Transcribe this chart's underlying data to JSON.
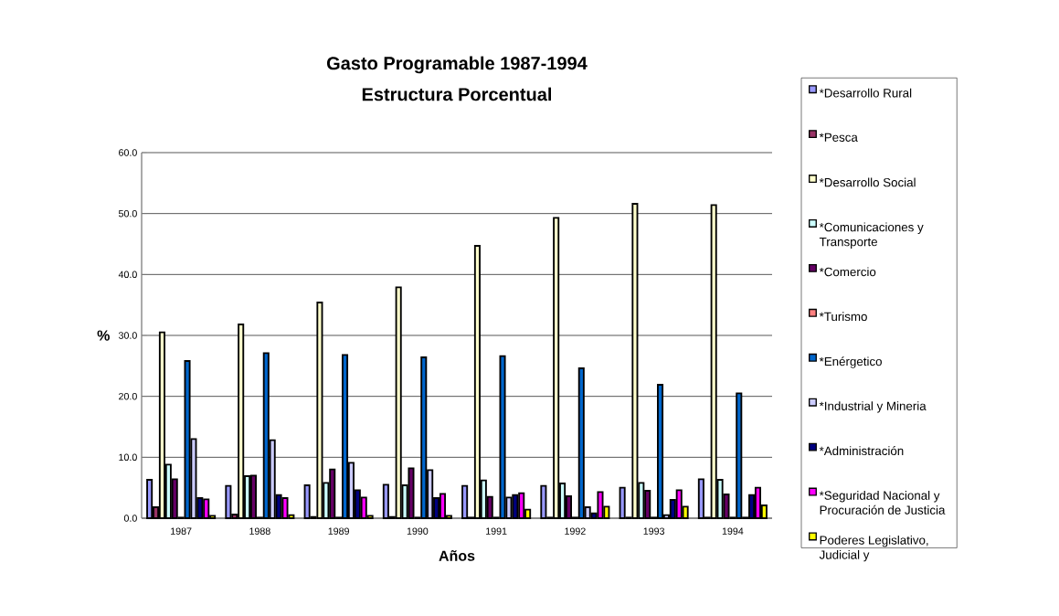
{
  "chart_data": {
    "type": "bar",
    "title": "Gasto Programable 1987-1994",
    "subtitle": "Estructura Porcentual",
    "xlabel": "Años",
    "ylabel": "%",
    "categories": [
      "1987",
      "1988",
      "1989",
      "1990",
      "1991",
      "1992",
      "1993",
      "1994"
    ],
    "series": [
      {
        "name": "*Desarrollo Rural",
        "color": "#9999ff",
        "values": [
          6.3,
          5.3,
          5.4,
          5.5,
          5.3,
          5.3,
          5.0,
          6.4
        ]
      },
      {
        "name": "*Pesca",
        "color": "#993366",
        "values": [
          1.8,
          0.6,
          0.2,
          0.2,
          0.1,
          0.1,
          0.1,
          0.1
        ]
      },
      {
        "name": "*Desarrollo Social",
        "color": "#ffffcc",
        "values": [
          30.5,
          31.8,
          35.4,
          37.9,
          44.7,
          49.3,
          51.6,
          51.4
        ]
      },
      {
        "name": "*Comunicaciones y Transporte",
        "color": "#ccffff",
        "values": [
          8.8,
          6.9,
          5.8,
          5.4,
          6.2,
          5.7,
          5.8,
          6.3
        ]
      },
      {
        "name": "*Comercio",
        "color": "#660066",
        "values": [
          6.4,
          7.0,
          8.0,
          8.2,
          3.5,
          3.6,
          4.5,
          3.9
        ]
      },
      {
        "name": "*Turismo",
        "color": "#ff8080",
        "values": [
          0.1,
          0.1,
          0.1,
          0.1,
          0.1,
          0.1,
          0.1,
          0.1
        ]
      },
      {
        "name": "*Enérgetico",
        "color": "#0066cc",
        "values": [
          25.8,
          27.1,
          26.8,
          26.4,
          26.6,
          24.6,
          21.9,
          20.5
        ]
      },
      {
        "name": "*Industrial y Mineria",
        "color": "#ccccff",
        "values": [
          13.0,
          12.8,
          9.1,
          7.9,
          3.4,
          1.8,
          0.5,
          0.1
        ]
      },
      {
        "name": "*Administración",
        "color": "#000080",
        "values": [
          3.3,
          3.8,
          4.6,
          3.3,
          3.8,
          0.8,
          3.0,
          3.8
        ]
      },
      {
        "name": "*Seguridad Nacional y Procuración de Justicia",
        "color": "#ff00ff",
        "values": [
          3.1,
          3.3,
          3.4,
          4.0,
          4.1,
          4.3,
          4.6,
          5.0
        ]
      },
      {
        "name": "Poderes Legislativo, Judicial y",
        "color": "#ffff00",
        "values": [
          0.4,
          0.5,
          0.4,
          0.4,
          1.4,
          1.9,
          1.9,
          2.1
        ]
      }
    ],
    "ylim": [
      0,
      60
    ],
    "yticks": [
      {
        "value": 0,
        "label": "0.0"
      },
      {
        "value": 10,
        "label": "10.0"
      },
      {
        "value": 20,
        "label": "20.0"
      },
      {
        "value": 30,
        "label": "30.0"
      },
      {
        "value": 40,
        "label": "40.0"
      },
      {
        "value": 50,
        "label": "50.0"
      },
      {
        "value": 60,
        "label": "60.0"
      }
    ],
    "grid": "y",
    "legend": "right"
  }
}
